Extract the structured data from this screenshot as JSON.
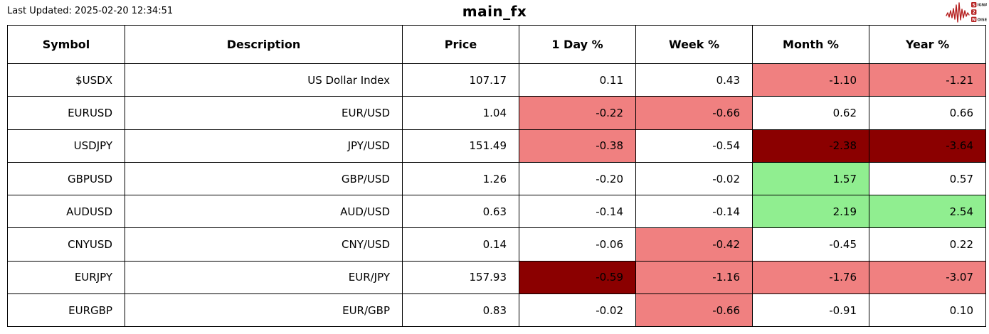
{
  "meta": {
    "last_updated_label": "Last Updated: 2025-02-20 12:34:51",
    "title": "main_fx"
  },
  "logo": {
    "lines": [
      {
        "initial": "S",
        "rest": "IGNAL"
      },
      {
        "initial": "2",
        "rest": ""
      },
      {
        "initial": "N",
        "rest": "OISE"
      }
    ],
    "accent_color": "#b51f1f"
  },
  "colors": {
    "none": "#ffffff",
    "down": "#f08080",
    "down_strong": "#8b0000",
    "up": "#90ee90",
    "border": "#000000"
  },
  "chart_data": {
    "type": "table",
    "title": "main_fx",
    "last_updated": "2025-02-20 12:34:51",
    "columns": [
      "Symbol",
      "Description",
      "Price",
      "1 Day %",
      "Week %",
      "Month %",
      "Year %"
    ],
    "highlight_legend": {
      "down": "#f08080",
      "down_strong": "#8b0000",
      "up": "#90ee90",
      "neutral": "#ffffff"
    },
    "rows": [
      {
        "symbol": "$USDX",
        "description": "US Dollar Index",
        "price": "107.17",
        "changes": [
          {
            "value": "0.11",
            "bg": "none"
          },
          {
            "value": "0.43",
            "bg": "none"
          },
          {
            "value": "-1.10",
            "bg": "down"
          },
          {
            "value": "-1.21",
            "bg": "down"
          }
        ]
      },
      {
        "symbol": "EURUSD",
        "description": "EUR/USD",
        "price": "1.04",
        "changes": [
          {
            "value": "-0.22",
            "bg": "down"
          },
          {
            "value": "-0.66",
            "bg": "down"
          },
          {
            "value": "0.62",
            "bg": "none"
          },
          {
            "value": "0.66",
            "bg": "none"
          }
        ]
      },
      {
        "symbol": "USDJPY",
        "description": "JPY/USD",
        "price": "151.49",
        "changes": [
          {
            "value": "-0.38",
            "bg": "down"
          },
          {
            "value": "-0.54",
            "bg": "none"
          },
          {
            "value": "-2.38",
            "bg": "down_strong"
          },
          {
            "value": "-3.64",
            "bg": "down_strong"
          }
        ]
      },
      {
        "symbol": "GBPUSD",
        "description": "GBP/USD",
        "price": "1.26",
        "changes": [
          {
            "value": "-0.20",
            "bg": "none"
          },
          {
            "value": "-0.02",
            "bg": "none"
          },
          {
            "value": "1.57",
            "bg": "up"
          },
          {
            "value": "0.57",
            "bg": "none"
          }
        ]
      },
      {
        "symbol": "AUDUSD",
        "description": "AUD/USD",
        "price": "0.63",
        "changes": [
          {
            "value": "-0.14",
            "bg": "none"
          },
          {
            "value": "-0.14",
            "bg": "none"
          },
          {
            "value": "2.19",
            "bg": "up"
          },
          {
            "value": "2.54",
            "bg": "up"
          }
        ]
      },
      {
        "symbol": "CNYUSD",
        "description": "CNY/USD",
        "price": "0.14",
        "changes": [
          {
            "value": "-0.06",
            "bg": "none"
          },
          {
            "value": "-0.42",
            "bg": "down"
          },
          {
            "value": "-0.45",
            "bg": "none"
          },
          {
            "value": "0.22",
            "bg": "none"
          }
        ]
      },
      {
        "symbol": "EURJPY",
        "description": "EUR/JPY",
        "price": "157.93",
        "changes": [
          {
            "value": "-0.59",
            "bg": "down_strong"
          },
          {
            "value": "-1.16",
            "bg": "down"
          },
          {
            "value": "-1.76",
            "bg": "down"
          },
          {
            "value": "-3.07",
            "bg": "down"
          }
        ]
      },
      {
        "symbol": "EURGBP",
        "description": "EUR/GBP",
        "price": "0.83",
        "changes": [
          {
            "value": "-0.02",
            "bg": "none"
          },
          {
            "value": "-0.66",
            "bg": "down"
          },
          {
            "value": "-0.91",
            "bg": "none"
          },
          {
            "value": "0.10",
            "bg": "none"
          }
        ]
      }
    ]
  }
}
